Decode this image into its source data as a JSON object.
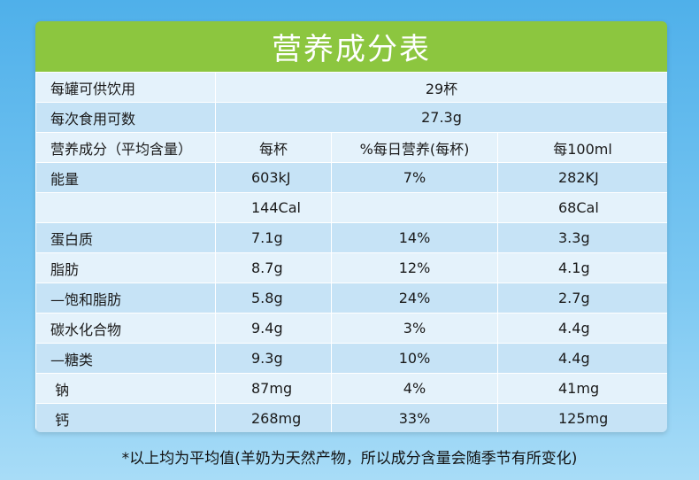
{
  "title": "营养成分表",
  "servings": {
    "label": "每罐可供饮用",
    "value": "29杯"
  },
  "portion": {
    "label": "每次食用可数",
    "value": "27.3g"
  },
  "header": {
    "col1": "营养成分（平均含量）",
    "col2": "每杯",
    "col3": "%每日营养(每杯)",
    "col4": "每100ml"
  },
  "rows": [
    {
      "name": "能量",
      "per_cup": "603kJ",
      "dv": "7%",
      "per_100ml": "282KJ"
    },
    {
      "name": "",
      "per_cup": "144Cal",
      "dv": "",
      "per_100ml": "68Cal"
    },
    {
      "name": "蛋白质",
      "per_cup": "7.1g",
      "dv": "14%",
      "per_100ml": "3.3g"
    },
    {
      "name": "脂肪",
      "per_cup": "8.7g",
      "dv": "12%",
      "per_100ml": "4.1g"
    },
    {
      "name": "—饱和脂肪",
      "per_cup": "5.8g",
      "dv": "24%",
      "per_100ml": "2.7g"
    },
    {
      "name": "碳水化合物",
      "per_cup": "9.4g",
      "dv": "3%",
      "per_100ml": "4.4g"
    },
    {
      "name": "—糖类",
      "per_cup": "9.3g",
      "dv": "10%",
      "per_100ml": "4.4g"
    },
    {
      "name": " 钠",
      "per_cup": "87mg",
      "dv": "4%",
      "per_100ml": "41mg"
    },
    {
      "name": " 钙",
      "per_cup": "268mg",
      "dv": "33%",
      "per_100ml": "125mg"
    }
  ],
  "footnote": "*以上均为平均值(羊奶为天然产物，所以成分含量会随季节有所变化)",
  "colors": {
    "title_bg": "#8cc63f",
    "row_light": "#e4f2fb",
    "row_dark": "#c6e3f6"
  }
}
